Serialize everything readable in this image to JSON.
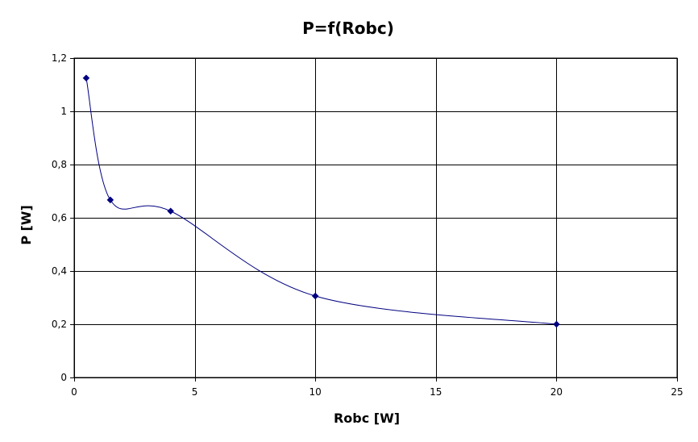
{
  "chart_data": {
    "type": "scatter",
    "title": "P=f(Robc)",
    "xlabel": "Robc [W]",
    "ylabel": "P [W]",
    "xlim": [
      0,
      25
    ],
    "ylim": [
      0,
      1.2
    ],
    "x_ticks": [
      0,
      5,
      10,
      15,
      20,
      25
    ],
    "y_ticks": [
      0,
      0.2,
      0.4,
      0.6,
      0.8,
      1,
      1.2
    ],
    "x_tick_labels": [
      "0",
      "5",
      "10",
      "15",
      "20",
      "25"
    ],
    "y_tick_labels": [
      "0",
      "0,2",
      "0,4",
      "0,6",
      "0,8",
      "1",
      "1,2"
    ],
    "grid": true,
    "legend": "none",
    "smoothed_line": true,
    "series": [
      {
        "x": [
          0.5,
          1.5,
          4,
          10,
          20
        ],
        "y": [
          1.125,
          0.667,
          0.625,
          0.306,
          0.2
        ],
        "color": "#000080"
      }
    ]
  }
}
